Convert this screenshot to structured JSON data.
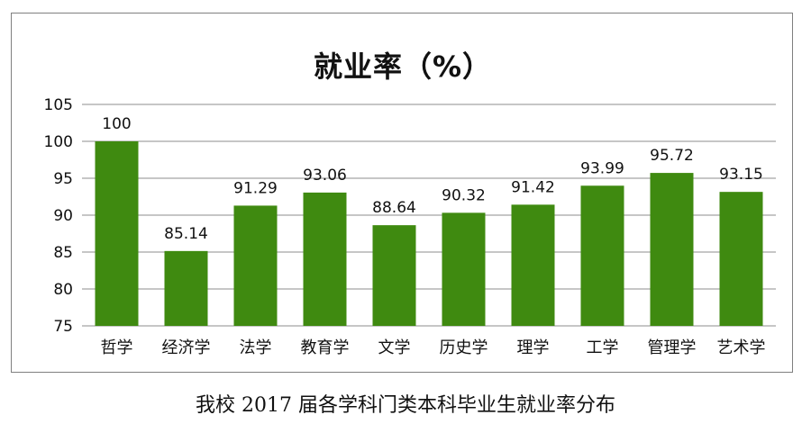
{
  "chart_data": {
    "type": "bar",
    "title": "就业率（%）",
    "categories": [
      "哲学",
      "经济学",
      "法学",
      "教育学",
      "文学",
      "历史学",
      "理学",
      "工学",
      "管理学",
      "艺术学"
    ],
    "values": [
      100,
      85.14,
      91.29,
      93.06,
      88.64,
      90.32,
      91.42,
      93.99,
      95.72,
      93.15
    ],
    "data_labels": [
      "100",
      "85.14",
      "91.29",
      "93.06",
      "88.64",
      "90.32",
      "91.42",
      "93.99",
      "95.72",
      "93.15"
    ],
    "ylim": [
      75,
      105
    ],
    "yticks": [
      75,
      80,
      85,
      90,
      95,
      100,
      105
    ],
    "grid": true,
    "bar_color": "#3f8a10",
    "gridline_color": "#8c8c8c"
  },
  "caption": "我校 2017 届各学科门类本科毕业生就业率分布"
}
